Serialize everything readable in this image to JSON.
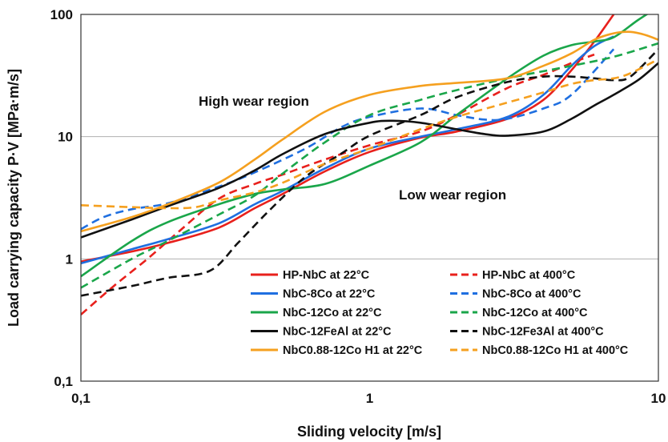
{
  "chart_data": {
    "type": "line",
    "title": "",
    "xlabel": "Sliding velocity [m/s]",
    "ylabel": "Load carrying capacity P·V [MPa·m/s]",
    "x_scale": "log",
    "y_scale": "log",
    "xlim": [
      0.1,
      10
    ],
    "ylim": [
      0.1,
      100
    ],
    "x_ticks": [
      "0,1",
      "1",
      "10"
    ],
    "y_ticks": [
      "0,1",
      "1",
      "10",
      "100"
    ],
    "grid": "horizontal major lines",
    "legend_position": "lower-right inside plot, two columns",
    "annotations": [
      {
        "text": "High wear region",
        "x": 0.25,
        "y": 30
      },
      {
        "text": "Low wear region",
        "x": 2.2,
        "y": 2.3
      }
    ],
    "series": [
      {
        "name": "HP-NbC at 22°C",
        "color": "#e8201c",
        "dash": "solid",
        "points": [
          [
            0.1,
            0.95
          ],
          [
            0.15,
            1.15
          ],
          [
            0.2,
            1.35
          ],
          [
            0.3,
            1.8
          ],
          [
            0.4,
            2.6
          ],
          [
            0.5,
            3.4
          ],
          [
            0.7,
            5.2
          ],
          [
            1.0,
            7.5
          ],
          [
            1.5,
            9.8
          ],
          [
            2.0,
            11
          ],
          [
            3.0,
            14
          ],
          [
            4.0,
            20
          ],
          [
            5.0,
            35
          ],
          [
            6.0,
            60
          ],
          [
            7.0,
            100
          ]
        ]
      },
      {
        "name": "HP-NbC at 400°C",
        "color": "#e8201c",
        "dash": "dashed",
        "points": [
          [
            0.1,
            0.35
          ],
          [
            0.13,
            0.6
          ],
          [
            0.17,
            1.0
          ],
          [
            0.22,
            1.7
          ],
          [
            0.3,
            3.1
          ],
          [
            0.4,
            4.1
          ],
          [
            0.5,
            4.9
          ],
          [
            0.7,
            6.5
          ],
          [
            1.0,
            8.5
          ],
          [
            1.5,
            11
          ],
          [
            2.0,
            15
          ],
          [
            3.0,
            25
          ],
          [
            4.0,
            32
          ],
          [
            5.0,
            40
          ],
          [
            6.0,
            47
          ]
        ]
      },
      {
        "name": "NbC-8Co at 22°C",
        "color": "#1f6fe0",
        "dash": "solid",
        "points": [
          [
            0.1,
            0.92
          ],
          [
            0.15,
            1.2
          ],
          [
            0.2,
            1.45
          ],
          [
            0.3,
            1.95
          ],
          [
            0.4,
            2.8
          ],
          [
            0.5,
            3.6
          ],
          [
            0.7,
            5.5
          ],
          [
            1.0,
            8.0
          ],
          [
            1.5,
            10
          ],
          [
            2.0,
            11.5
          ],
          [
            3.0,
            14.5
          ],
          [
            4.0,
            22
          ],
          [
            5.0,
            38
          ],
          [
            6.0,
            55
          ],
          [
            7.0,
            66
          ]
        ]
      },
      {
        "name": "NbC-8Co at 400°C",
        "color": "#1f6fe0",
        "dash": "dashed",
        "points": [
          [
            0.1,
            1.75
          ],
          [
            0.12,
            2.2
          ],
          [
            0.15,
            2.55
          ],
          [
            0.2,
            2.85
          ],
          [
            0.3,
            3.9
          ],
          [
            0.4,
            5.1
          ],
          [
            0.6,
            8.0
          ],
          [
            0.8,
            12
          ],
          [
            1.0,
            14.5
          ],
          [
            1.5,
            17
          ],
          [
            2.0,
            15
          ],
          [
            2.5,
            13.8
          ],
          [
            3.0,
            14
          ],
          [
            4.0,
            17
          ],
          [
            5.0,
            22
          ],
          [
            7.0,
            52
          ]
        ]
      },
      {
        "name": "NbC-12Co at 22°C",
        "color": "#1aa64a",
        "dash": "solid",
        "points": [
          [
            0.1,
            0.72
          ],
          [
            0.15,
            1.4
          ],
          [
            0.2,
            2.0
          ],
          [
            0.3,
            2.8
          ],
          [
            0.4,
            3.4
          ],
          [
            0.5,
            3.7
          ],
          [
            0.7,
            4.1
          ],
          [
            1.0,
            5.8
          ],
          [
            1.5,
            9
          ],
          [
            2.0,
            15
          ],
          [
            3.0,
            30
          ],
          [
            4.0,
            46
          ],
          [
            5.0,
            56
          ],
          [
            6.0,
            60
          ],
          [
            7.0,
            65
          ],
          [
            8.5,
            90
          ],
          [
            10.0,
            115
          ]
        ]
      },
      {
        "name": "NbC-12Co at 400°C",
        "color": "#1aa64a",
        "dash": "dashed",
        "points": [
          [
            0.1,
            0.58
          ],
          [
            0.15,
            1.0
          ],
          [
            0.2,
            1.4
          ],
          [
            0.3,
            2.3
          ],
          [
            0.4,
            3.3
          ],
          [
            0.5,
            5.0
          ],
          [
            0.7,
            9.0
          ],
          [
            1.0,
            15
          ],
          [
            1.5,
            20
          ],
          [
            2.0,
            24
          ],
          [
            3.0,
            30
          ],
          [
            5.0,
            38
          ],
          [
            7.0,
            45
          ],
          [
            10.0,
            58
          ]
        ]
      },
      {
        "name": "NbC-12FeAl at 22°C",
        "color": "#111111",
        "dash": "solid",
        "points": [
          [
            0.1,
            1.5
          ],
          [
            0.15,
            2.1
          ],
          [
            0.2,
            2.7
          ],
          [
            0.3,
            3.8
          ],
          [
            0.4,
            5.3
          ],
          [
            0.5,
            7.2
          ],
          [
            0.7,
            10.5
          ],
          [
            1.0,
            13
          ],
          [
            1.2,
            13.5
          ],
          [
            1.5,
            13
          ],
          [
            2.0,
            11.5
          ],
          [
            2.5,
            10.5
          ],
          [
            3.0,
            10.2
          ],
          [
            4.0,
            11
          ],
          [
            5.0,
            14
          ],
          [
            6.0,
            18
          ],
          [
            7.0,
            22
          ],
          [
            8.5,
            29
          ],
          [
            10.0,
            40
          ]
        ]
      },
      {
        "name": "NbC-12Fe3Al at 400°C",
        "color": "#111111",
        "dash": "dashed",
        "points": [
          [
            0.1,
            0.5
          ],
          [
            0.15,
            0.6
          ],
          [
            0.2,
            0.7
          ],
          [
            0.28,
            0.8
          ],
          [
            0.35,
            1.35
          ],
          [
            0.45,
            2.5
          ],
          [
            0.6,
            4.7
          ],
          [
            0.8,
            7.3
          ],
          [
            1.0,
            10.2
          ],
          [
            1.5,
            15
          ],
          [
            2.0,
            21
          ],
          [
            3.0,
            28
          ],
          [
            4.0,
            31
          ],
          [
            5.0,
            31
          ],
          [
            6.0,
            30
          ],
          [
            7.0,
            29
          ],
          [
            8.0,
            31
          ],
          [
            10.0,
            52
          ]
        ]
      },
      {
        "name": "NbC0.88-12Co H1 at 22°C",
        "color": "#f5a01f",
        "dash": "solid",
        "points": [
          [
            0.1,
            1.68
          ],
          [
            0.15,
            2.2
          ],
          [
            0.2,
            2.8
          ],
          [
            0.3,
            4.2
          ],
          [
            0.4,
            6.5
          ],
          [
            0.5,
            9.5
          ],
          [
            0.7,
            16
          ],
          [
            1.0,
            22
          ],
          [
            1.5,
            26
          ],
          [
            2.0,
            27.5
          ],
          [
            3.0,
            30
          ],
          [
            4.0,
            38
          ],
          [
            5.0,
            48
          ],
          [
            6.0,
            62
          ],
          [
            7.0,
            70
          ],
          [
            8.0,
            72
          ],
          [
            9.0,
            68
          ],
          [
            10.0,
            62
          ]
        ]
      },
      {
        "name": "NbC0.88-12Co H1 at 400°C",
        "color": "#f5a01f",
        "dash": "dashed",
        "points": [
          [
            0.1,
            2.75
          ],
          [
            0.15,
            2.65
          ],
          [
            0.2,
            2.6
          ],
          [
            0.25,
            2.65
          ],
          [
            0.3,
            3.0
          ],
          [
            0.4,
            3.5
          ],
          [
            0.5,
            4.2
          ],
          [
            0.7,
            6.0
          ],
          [
            1.0,
            8.0
          ],
          [
            1.5,
            11.5
          ],
          [
            2.0,
            14.5
          ],
          [
            3.0,
            19
          ],
          [
            4.0,
            23
          ],
          [
            5.0,
            27
          ],
          [
            6.0,
            29
          ],
          [
            7.0,
            30
          ],
          [
            8.0,
            33
          ],
          [
            10.0,
            43
          ]
        ]
      }
    ]
  }
}
